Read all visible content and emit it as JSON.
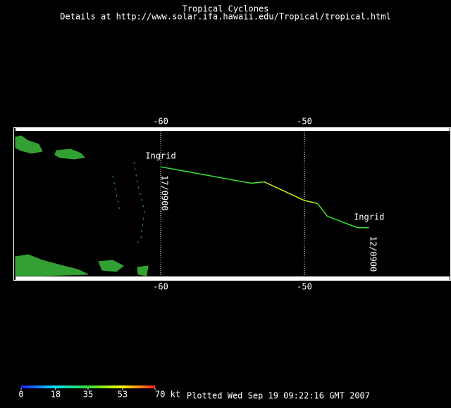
{
  "chart_data": {
    "type": "track",
    "title": "Tropical Cyclones",
    "subtitle": "Details at http://www.solar.ifa.hawaii.edu/Tropical/tropical.html",
    "xlim": [
      -70.25,
      -39.8
    ],
    "ylim": [
      10.36,
      21
    ],
    "xticks": [
      -60,
      -50
    ],
    "track": {
      "name": "Ingrid",
      "lon": [
        -60.0,
        -53.7,
        -52.8,
        -50.0,
        -49.1,
        -48.4,
        -46.3,
        -45.5
      ],
      "lat": [
        18.25,
        17.1,
        17.2,
        15.9,
        15.7,
        14.8,
        14.0,
        14.0
      ],
      "wind": [
        35,
        38,
        48,
        45,
        38,
        35,
        35,
        35
      ]
    },
    "end_labels": [
      "17/0900",
      "12/0900"
    ],
    "colorbar": {
      "colors": [
        "#2020ff",
        "#00e0ff",
        "#30e030",
        "#ffff00",
        "#ff2020"
      ],
      "range": [
        0,
        70
      ],
      "ticks": [
        0,
        18,
        35,
        53,
        {
          "value": 70,
          "label": "70 kt"
        }
      ]
    },
    "footer": "Plotted Wed Sep 19 09:22:16 GMT 2007"
  }
}
